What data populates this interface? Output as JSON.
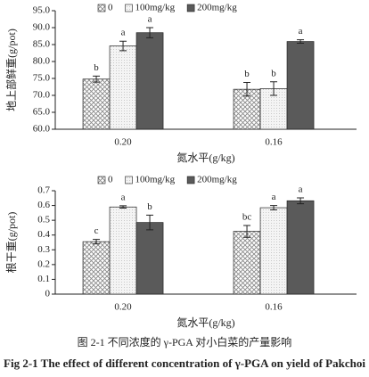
{
  "chart_data": [
    {
      "type": "bar",
      "y_label": "地上部鲜重(g/pot)",
      "x_label": "氮水平(g/kg)",
      "categories": [
        "0.20",
        "0.16"
      ],
      "series": [
        {
          "name": "0",
          "color": "#8a8a8a",
          "pattern": "crosshatch",
          "values": [
            74.8,
            71.8
          ],
          "errors": [
            0.9,
            2.0
          ],
          "significance": [
            "b",
            "b"
          ]
        },
        {
          "name": "100mg/kg",
          "color": "#c8c8c8",
          "pattern": "dots",
          "values": [
            84.6,
            72.0
          ],
          "errors": [
            1.4,
            2.0
          ],
          "significance": [
            "a",
            "b"
          ]
        },
        {
          "name": "200mg/kg",
          "color": "#5a5a5a",
          "pattern": "solid",
          "values": [
            88.5,
            85.9
          ],
          "errors": [
            1.5,
            0.5
          ],
          "significance": [
            "a",
            "a"
          ]
        }
      ],
      "ylim": [
        60,
        95
      ],
      "yticks": [
        {
          "value": 60,
          "label": "60.0"
        },
        {
          "value": 65,
          "label": "65.0"
        },
        {
          "value": 70,
          "label": "70.0"
        },
        {
          "value": 75,
          "label": "75.0"
        },
        {
          "value": 80,
          "label": "80.0"
        },
        {
          "value": 85,
          "label": "85.0"
        },
        {
          "value": 90,
          "label": "90.0"
        },
        {
          "value": 95,
          "label": "95.0"
        }
      ]
    },
    {
      "type": "bar",
      "y_label": "根干重(g/pot)",
      "x_label": "氮水平(g/kg)",
      "categories": [
        "0.20",
        "0.16"
      ],
      "series": [
        {
          "name": "0",
          "color": "#8a8a8a",
          "pattern": "crosshatch",
          "values": [
            0.355,
            0.425
          ],
          "errors": [
            0.015,
            0.04
          ],
          "significance": [
            "c",
            "bc"
          ]
        },
        {
          "name": "100mg/kg",
          "color": "#c8c8c8",
          "pattern": "dots",
          "values": [
            0.59,
            0.585
          ],
          "errors": [
            0.008,
            0.015
          ],
          "significance": [
            "a",
            "a"
          ]
        },
        {
          "name": "200mg/kg",
          "color": "#5a5a5a",
          "pattern": "solid",
          "values": [
            0.485,
            0.632
          ],
          "errors": [
            0.05,
            0.02
          ],
          "significance": [
            "b",
            "a"
          ]
        }
      ],
      "ylim": [
        0,
        0.7
      ],
      "yticks": [
        0,
        0.1,
        0.2,
        0.3,
        0.4,
        0.5,
        0.6,
        0.7
      ]
    }
  ],
  "caption": {
    "zh": "图 2-1 不同浓度的 γ-PGA 对小白菜的产量影响",
    "en": "Fig 2-1 The effect of different concentration of γ-PGA on yield of Pakchoi"
  }
}
